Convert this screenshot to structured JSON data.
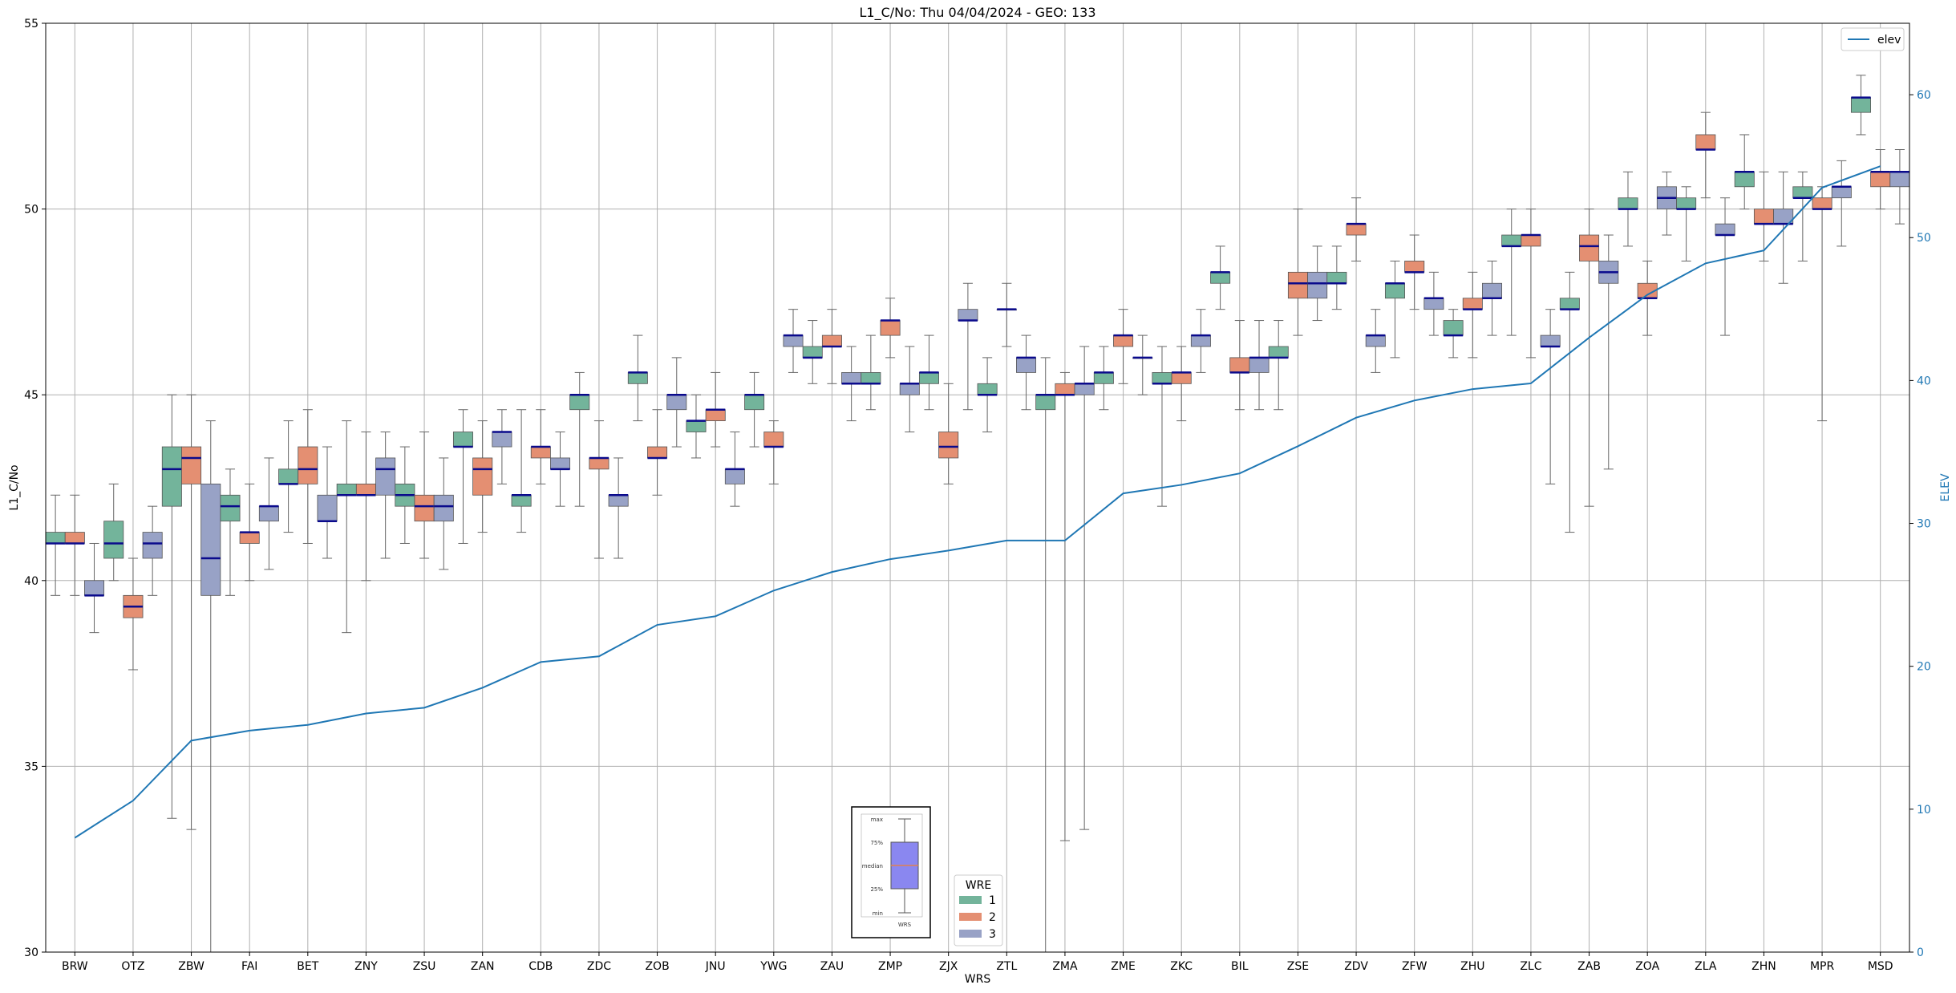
{
  "chart_data": {
    "type": "box",
    "title": "L1_C/No: Thu 04/04/2024 - GEO: 133",
    "xlabel": "WRS",
    "ylabel": "L1_C/No",
    "y2label": "ELEV",
    "ylim": [
      30,
      55
    ],
    "y2lim": [
      0,
      65
    ],
    "yticks": [
      30,
      35,
      40,
      45,
      50,
      55
    ],
    "y2ticks": [
      0,
      10,
      20,
      30,
      40,
      50,
      60
    ],
    "grid": true,
    "categories": [
      "BRW",
      "OTZ",
      "ZBW",
      "FAI",
      "BET",
      "ZNY",
      "ZSU",
      "ZAN",
      "CDB",
      "ZDC",
      "ZOB",
      "JNU",
      "YWG",
      "ZAU",
      "ZMP",
      "ZJX",
      "ZTL",
      "ZMA",
      "ZME",
      "ZKC",
      "BIL",
      "ZSE",
      "ZDV",
      "ZFW",
      "ZHU",
      "ZLC",
      "ZAB",
      "ZOA",
      "ZLA",
      "ZHN",
      "MPR",
      "MSD"
    ],
    "legend": {
      "title": "WRE",
      "placement": "bottom-center",
      "items": [
        {
          "label": "1",
          "color": "#73b49b"
        },
        {
          "label": "2",
          "color": "#e48f72"
        },
        {
          "label": "3",
          "color": "#98a2c6"
        }
      ]
    },
    "line_legend": {
      "label": "elev",
      "placement": "top-right",
      "color": "#1f77b4"
    },
    "elev": [
      8.0,
      10.6,
      14.8,
      15.5,
      15.9,
      16.7,
      17.1,
      18.5,
      20.3,
      20.7,
      22.9,
      23.5,
      25.3,
      26.6,
      27.5,
      28.1,
      28.8,
      28.8,
      32.1,
      32.7,
      33.5,
      35.4,
      37.4,
      38.6,
      39.4,
      39.8,
      43.0,
      46.0,
      48.2,
      49.1,
      53.5,
      55.0
    ],
    "box_key": {
      "labels": [
        "max",
        "75%",
        "median",
        "25%",
        "min"
      ],
      "xlabel": "WRS"
    },
    "boxes": [
      {
        "wrs": "BRW",
        "wre": 1,
        "min": 39.6,
        "q1": 41.0,
        "median": 41.0,
        "q3": 41.3,
        "max": 42.3
      },
      {
        "wrs": "BRW",
        "wre": 2,
        "min": 39.6,
        "q1": 41.0,
        "median": 41.0,
        "q3": 41.3,
        "max": 42.3
      },
      {
        "wrs": "BRW",
        "wre": 3,
        "min": 38.6,
        "q1": 39.6,
        "median": 39.6,
        "q3": 40.0,
        "max": 41.0
      },
      {
        "wrs": "OTZ",
        "wre": 1,
        "min": 40.0,
        "q1": 40.6,
        "median": 41.0,
        "q3": 41.6,
        "max": 42.6
      },
      {
        "wrs": "OTZ",
        "wre": 2,
        "min": 37.6,
        "q1": 39.0,
        "median": 39.3,
        "q3": 39.6,
        "max": 40.6
      },
      {
        "wrs": "OTZ",
        "wre": 3,
        "min": 39.6,
        "q1": 40.6,
        "median": 41.0,
        "q3": 41.3,
        "max": 42.0
      },
      {
        "wrs": "ZBW",
        "wre": 1,
        "min": 33.6,
        "q1": 42.0,
        "median": 43.0,
        "q3": 43.6,
        "max": 45.0
      },
      {
        "wrs": "ZBW",
        "wre": 2,
        "min": 33.3,
        "q1": 42.6,
        "median": 43.3,
        "q3": 43.6,
        "max": 45.0
      },
      {
        "wrs": "ZBW",
        "wre": 3,
        "min": 30.0,
        "q1": 39.6,
        "median": 40.6,
        "q3": 42.6,
        "max": 44.3
      },
      {
        "wrs": "FAI",
        "wre": 1,
        "min": 39.6,
        "q1": 41.6,
        "median": 42.0,
        "q3": 42.3,
        "max": 43.0
      },
      {
        "wrs": "FAI",
        "wre": 2,
        "min": 40.0,
        "q1": 41.0,
        "median": 41.3,
        "q3": 41.3,
        "max": 42.6
      },
      {
        "wrs": "FAI",
        "wre": 3,
        "min": 40.3,
        "q1": 41.6,
        "median": 42.0,
        "q3": 42.0,
        "max": 43.3
      },
      {
        "wrs": "BET",
        "wre": 1,
        "min": 41.3,
        "q1": 42.6,
        "median": 42.6,
        "q3": 43.0,
        "max": 44.3
      },
      {
        "wrs": "BET",
        "wre": 2,
        "min": 41.0,
        "q1": 42.6,
        "median": 43.0,
        "q3": 43.6,
        "max": 44.6
      },
      {
        "wrs": "BET",
        "wre": 3,
        "min": 40.6,
        "q1": 41.6,
        "median": 41.6,
        "q3": 42.3,
        "max": 43.6
      },
      {
        "wrs": "ZNY",
        "wre": 1,
        "min": 38.6,
        "q1": 42.3,
        "median": 42.3,
        "q3": 42.6,
        "max": 44.3
      },
      {
        "wrs": "ZNY",
        "wre": 2,
        "min": 40.0,
        "q1": 42.3,
        "median": 42.3,
        "q3": 42.6,
        "max": 44.0
      },
      {
        "wrs": "ZNY",
        "wre": 3,
        "min": 40.6,
        "q1": 42.3,
        "median": 43.0,
        "q3": 43.3,
        "max": 44.0
      },
      {
        "wrs": "ZSU",
        "wre": 1,
        "min": 41.0,
        "q1": 42.0,
        "median": 42.3,
        "q3": 42.6,
        "max": 43.6
      },
      {
        "wrs": "ZSU",
        "wre": 2,
        "min": 40.6,
        "q1": 41.6,
        "median": 42.0,
        "q3": 42.3,
        "max": 44.0
      },
      {
        "wrs": "ZSU",
        "wre": 3,
        "min": 40.3,
        "q1": 41.6,
        "median": 42.0,
        "q3": 42.3,
        "max": 43.3
      },
      {
        "wrs": "ZAN",
        "wre": 1,
        "min": 41.0,
        "q1": 43.6,
        "median": 43.6,
        "q3": 44.0,
        "max": 44.6
      },
      {
        "wrs": "ZAN",
        "wre": 2,
        "min": 41.3,
        "q1": 42.3,
        "median": 43.0,
        "q3": 43.3,
        "max": 44.3
      },
      {
        "wrs": "ZAN",
        "wre": 3,
        "min": 42.6,
        "q1": 43.6,
        "median": 44.0,
        "q3": 44.0,
        "max": 44.6
      },
      {
        "wrs": "CDB",
        "wre": 1,
        "min": 41.3,
        "q1": 42.0,
        "median": 42.3,
        "q3": 42.3,
        "max": 44.6
      },
      {
        "wrs": "CDB",
        "wre": 2,
        "min": 42.6,
        "q1": 43.3,
        "median": 43.6,
        "q3": 43.6,
        "max": 44.6
      },
      {
        "wrs": "CDB",
        "wre": 3,
        "min": 42.0,
        "q1": 43.0,
        "median": 43.0,
        "q3": 43.3,
        "max": 44.0
      },
      {
        "wrs": "ZDC",
        "wre": 1,
        "min": 42.0,
        "q1": 44.6,
        "median": 45.0,
        "q3": 45.0,
        "max": 45.6
      },
      {
        "wrs": "ZDC",
        "wre": 2,
        "min": 40.6,
        "q1": 43.0,
        "median": 43.3,
        "q3": 43.3,
        "max": 44.3
      },
      {
        "wrs": "ZDC",
        "wre": 3,
        "min": 40.6,
        "q1": 42.0,
        "median": 42.3,
        "q3": 42.3,
        "max": 43.3
      },
      {
        "wrs": "ZOB",
        "wre": 1,
        "min": 44.3,
        "q1": 45.3,
        "median": 45.6,
        "q3": 45.6,
        "max": 46.6
      },
      {
        "wrs": "ZOB",
        "wre": 2,
        "min": 42.3,
        "q1": 43.3,
        "median": 43.3,
        "q3": 43.6,
        "max": 44.6
      },
      {
        "wrs": "ZOB",
        "wre": 3,
        "min": 43.6,
        "q1": 44.6,
        "median": 45.0,
        "q3": 45.0,
        "max": 46.0
      },
      {
        "wrs": "JNU",
        "wre": 1,
        "min": 43.3,
        "q1": 44.0,
        "median": 44.3,
        "q3": 44.3,
        "max": 45.0
      },
      {
        "wrs": "JNU",
        "wre": 2,
        "min": 43.6,
        "q1": 44.3,
        "median": 44.6,
        "q3": 44.6,
        "max": 45.6
      },
      {
        "wrs": "JNU",
        "wre": 3,
        "min": 42.0,
        "q1": 42.6,
        "median": 43.0,
        "q3": 43.0,
        "max": 44.0
      },
      {
        "wrs": "YWG",
        "wre": 1,
        "min": 43.6,
        "q1": 44.6,
        "median": 45.0,
        "q3": 45.0,
        "max": 45.6
      },
      {
        "wrs": "YWG",
        "wre": 2,
        "min": 42.6,
        "q1": 43.6,
        "median": 43.6,
        "q3": 44.0,
        "max": 44.3
      },
      {
        "wrs": "YWG",
        "wre": 3,
        "min": 45.6,
        "q1": 46.3,
        "median": 46.6,
        "q3": 46.6,
        "max": 47.3
      },
      {
        "wrs": "ZAU",
        "wre": 1,
        "min": 45.3,
        "q1": 46.0,
        "median": 46.0,
        "q3": 46.3,
        "max": 47.0
      },
      {
        "wrs": "ZAU",
        "wre": 2,
        "min": 45.3,
        "q1": 46.3,
        "median": 46.3,
        "q3": 46.6,
        "max": 47.3
      },
      {
        "wrs": "ZAU",
        "wre": 3,
        "min": 44.3,
        "q1": 45.3,
        "median": 45.3,
        "q3": 45.6,
        "max": 46.3
      },
      {
        "wrs": "ZMP",
        "wre": 1,
        "min": 44.6,
        "q1": 45.3,
        "median": 45.3,
        "q3": 45.6,
        "max": 46.6
      },
      {
        "wrs": "ZMP",
        "wre": 2,
        "min": 46.0,
        "q1": 46.6,
        "median": 47.0,
        "q3": 47.0,
        "max": 47.6
      },
      {
        "wrs": "ZMP",
        "wre": 3,
        "min": 44.0,
        "q1": 45.0,
        "median": 45.3,
        "q3": 45.3,
        "max": 46.3
      },
      {
        "wrs": "ZJX",
        "wre": 1,
        "min": 44.6,
        "q1": 45.3,
        "median": 45.6,
        "q3": 45.6,
        "max": 46.6
      },
      {
        "wrs": "ZJX",
        "wre": 2,
        "min": 42.6,
        "q1": 43.3,
        "median": 43.6,
        "q3": 44.0,
        "max": 45.3
      },
      {
        "wrs": "ZJX",
        "wre": 3,
        "min": 44.6,
        "q1": 47.0,
        "median": 47.0,
        "q3": 47.3,
        "max": 48.0
      },
      {
        "wrs": "ZTL",
        "wre": 1,
        "min": 44.0,
        "q1": 45.0,
        "median": 45.0,
        "q3": 45.3,
        "max": 46.0
      },
      {
        "wrs": "ZTL",
        "wre": 2,
        "min": 46.3,
        "q1": 47.3,
        "median": 47.3,
        "q3": 47.3,
        "max": 48.0
      },
      {
        "wrs": "ZTL",
        "wre": 3,
        "min": 44.6,
        "q1": 45.6,
        "median": 46.0,
        "q3": 46.0,
        "max": 46.6
      },
      {
        "wrs": "ZMA",
        "wre": 1,
        "min": 30.0,
        "q1": 44.6,
        "median": 45.0,
        "q3": 45.0,
        "max": 46.0
      },
      {
        "wrs": "ZMA",
        "wre": 2,
        "min": 33.0,
        "q1": 45.0,
        "median": 45.0,
        "q3": 45.3,
        "max": 45.6
      },
      {
        "wrs": "ZMA",
        "wre": 3,
        "min": 33.3,
        "q1": 45.0,
        "median": 45.3,
        "q3": 45.3,
        "max": 46.3
      },
      {
        "wrs": "ZME",
        "wre": 1,
        "min": 44.6,
        "q1": 45.3,
        "median": 45.6,
        "q3": 45.6,
        "max": 46.3
      },
      {
        "wrs": "ZME",
        "wre": 2,
        "min": 45.3,
        "q1": 46.3,
        "median": 46.6,
        "q3": 46.6,
        "max": 47.3
      },
      {
        "wrs": "ZME",
        "wre": 3,
        "min": 45.0,
        "q1": 46.0,
        "median": 46.0,
        "q3": 46.0,
        "max": 46.6
      },
      {
        "wrs": "ZKC",
        "wre": 1,
        "min": 42.0,
        "q1": 45.3,
        "median": 45.3,
        "q3": 45.6,
        "max": 46.3
      },
      {
        "wrs": "ZKC",
        "wre": 2,
        "min": 44.3,
        "q1": 45.3,
        "median": 45.6,
        "q3": 45.6,
        "max": 46.3
      },
      {
        "wrs": "ZKC",
        "wre": 3,
        "min": 45.6,
        "q1": 46.3,
        "median": 46.6,
        "q3": 46.6,
        "max": 47.3
      },
      {
        "wrs": "BIL",
        "wre": 1,
        "min": 47.3,
        "q1": 48.0,
        "median": 48.3,
        "q3": 48.3,
        "max": 49.0
      },
      {
        "wrs": "BIL",
        "wre": 2,
        "min": 44.6,
        "q1": 45.6,
        "median": 45.6,
        "q3": 46.0,
        "max": 47.0
      },
      {
        "wrs": "BIL",
        "wre": 3,
        "min": 44.6,
        "q1": 45.6,
        "median": 46.0,
        "q3": 46.0,
        "max": 47.0
      },
      {
        "wrs": "ZSE",
        "wre": 1,
        "min": 44.6,
        "q1": 46.0,
        "median": 46.0,
        "q3": 46.3,
        "max": 47.0
      },
      {
        "wrs": "ZSE",
        "wre": 2,
        "min": 46.6,
        "q1": 47.6,
        "median": 48.0,
        "q3": 48.3,
        "max": 50.0
      },
      {
        "wrs": "ZSE",
        "wre": 3,
        "min": 47.0,
        "q1": 47.6,
        "median": 48.0,
        "q3": 48.3,
        "max": 49.0
      },
      {
        "wrs": "ZDV",
        "wre": 1,
        "min": 47.3,
        "q1": 48.0,
        "median": 48.0,
        "q3": 48.3,
        "max": 49.0
      },
      {
        "wrs": "ZDV",
        "wre": 2,
        "min": 48.6,
        "q1": 49.3,
        "median": 49.6,
        "q3": 49.6,
        "max": 50.3
      },
      {
        "wrs": "ZDV",
        "wre": 3,
        "min": 45.6,
        "q1": 46.3,
        "median": 46.6,
        "q3": 46.6,
        "max": 47.3
      },
      {
        "wrs": "ZFW",
        "wre": 1,
        "min": 46.0,
        "q1": 47.6,
        "median": 48.0,
        "q3": 48.0,
        "max": 48.6
      },
      {
        "wrs": "ZFW",
        "wre": 2,
        "min": 47.3,
        "q1": 48.3,
        "median": 48.3,
        "q3": 48.6,
        "max": 49.3
      },
      {
        "wrs": "ZFW",
        "wre": 3,
        "min": 46.6,
        "q1": 47.3,
        "median": 47.6,
        "q3": 47.6,
        "max": 48.3
      },
      {
        "wrs": "ZHU",
        "wre": 1,
        "min": 46.0,
        "q1": 46.6,
        "median": 46.6,
        "q3": 47.0,
        "max": 47.3
      },
      {
        "wrs": "ZHU",
        "wre": 2,
        "min": 46.0,
        "q1": 47.3,
        "median": 47.3,
        "q3": 47.6,
        "max": 48.3
      },
      {
        "wrs": "ZHU",
        "wre": 3,
        "min": 46.6,
        "q1": 47.6,
        "median": 47.6,
        "q3": 48.0,
        "max": 48.6
      },
      {
        "wrs": "ZLC",
        "wre": 1,
        "min": 46.6,
        "q1": 49.0,
        "median": 49.0,
        "q3": 49.3,
        "max": 50.0
      },
      {
        "wrs": "ZLC",
        "wre": 2,
        "min": 46.0,
        "q1": 49.0,
        "median": 49.3,
        "q3": 49.3,
        "max": 50.0
      },
      {
        "wrs": "ZLC",
        "wre": 3,
        "min": 42.6,
        "q1": 46.3,
        "median": 46.3,
        "q3": 46.6,
        "max": 47.3
      },
      {
        "wrs": "ZAB",
        "wre": 1,
        "min": 41.3,
        "q1": 47.3,
        "median": 47.3,
        "q3": 47.6,
        "max": 48.3
      },
      {
        "wrs": "ZAB",
        "wre": 2,
        "min": 42.0,
        "q1": 48.6,
        "median": 49.0,
        "q3": 49.3,
        "max": 50.0
      },
      {
        "wrs": "ZAB",
        "wre": 3,
        "min": 43.0,
        "q1": 48.0,
        "median": 48.3,
        "q3": 48.6,
        "max": 49.3
      },
      {
        "wrs": "ZOA",
        "wre": 1,
        "min": 49.0,
        "q1": 50.0,
        "median": 50.0,
        "q3": 50.3,
        "max": 51.0
      },
      {
        "wrs": "ZOA",
        "wre": 2,
        "min": 46.6,
        "q1": 47.6,
        "median": 47.6,
        "q3": 48.0,
        "max": 48.6
      },
      {
        "wrs": "ZOA",
        "wre": 3,
        "min": 49.3,
        "q1": 50.0,
        "median": 50.3,
        "q3": 50.6,
        "max": 51.0
      },
      {
        "wrs": "ZLA",
        "wre": 1,
        "min": 48.6,
        "q1": 50.0,
        "median": 50.0,
        "q3": 50.3,
        "max": 50.6
      },
      {
        "wrs": "ZLA",
        "wre": 2,
        "min": 50.3,
        "q1": 51.6,
        "median": 51.6,
        "q3": 52.0,
        "max": 52.6
      },
      {
        "wrs": "ZLA",
        "wre": 3,
        "min": 46.6,
        "q1": 49.3,
        "median": 49.3,
        "q3": 49.6,
        "max": 50.3
      },
      {
        "wrs": "ZHN",
        "wre": 1,
        "min": 50.0,
        "q1": 50.6,
        "median": 51.0,
        "q3": 51.0,
        "max": 52.0
      },
      {
        "wrs": "ZHN",
        "wre": 2,
        "min": 48.6,
        "q1": 49.6,
        "median": 49.6,
        "q3": 50.0,
        "max": 51.0
      },
      {
        "wrs": "ZHN",
        "wre": 3,
        "min": 48.0,
        "q1": 49.6,
        "median": 49.6,
        "q3": 50.0,
        "max": 51.0
      },
      {
        "wrs": "MPR",
        "wre": 1,
        "min": 48.6,
        "q1": 50.3,
        "median": 50.3,
        "q3": 50.6,
        "max": 51.0
      },
      {
        "wrs": "MPR",
        "wre": 2,
        "min": 44.3,
        "q1": 50.0,
        "median": 50.0,
        "q3": 50.3,
        "max": 50.6
      },
      {
        "wrs": "MPR",
        "wre": 3,
        "min": 49.0,
        "q1": 50.3,
        "median": 50.6,
        "q3": 50.6,
        "max": 51.3
      },
      {
        "wrs": "MSD",
        "wre": 1,
        "min": 52.0,
        "q1": 52.6,
        "median": 53.0,
        "q3": 53.0,
        "max": 53.6
      },
      {
        "wrs": "MSD",
        "wre": 2,
        "min": 50.0,
        "q1": 50.6,
        "median": 51.0,
        "q3": 51.0,
        "max": 51.6
      },
      {
        "wrs": "MSD",
        "wre": 3,
        "min": 49.6,
        "q1": 50.6,
        "median": 51.0,
        "q3": 51.0,
        "max": 51.6
      }
    ]
  }
}
